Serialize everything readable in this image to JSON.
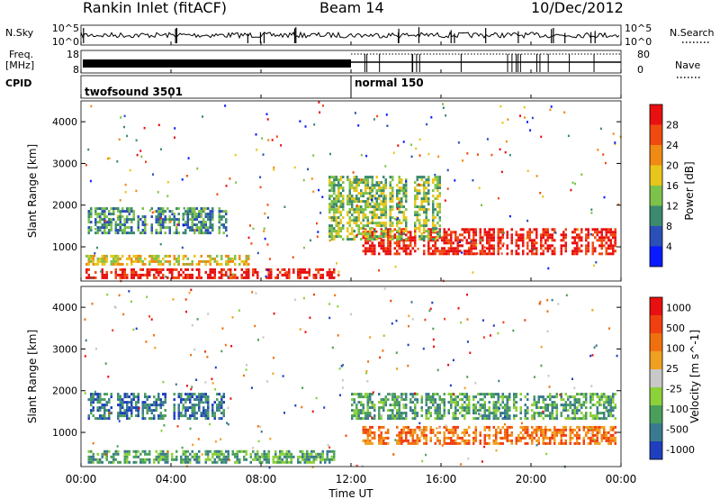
{
  "header": {
    "station": "Rankin Inlet (fitACF)",
    "beam": "Beam 14",
    "date": "10/Dec/2012"
  },
  "left_labels": {
    "nsky": "N.Sky",
    "freq_top": "Freq.",
    "freq_unit": "[MHz]",
    "cpid": "CPID"
  },
  "right_labels": {
    "nsearch": "N.Search",
    "nave": "Nave"
  },
  "cpid_labels": [
    "twofsound 3501",
    "normal 150"
  ],
  "colors": {
    "power_scale": [
      "#0a1aff",
      "#2a4fb8",
      "#3b8a6e",
      "#7dc24a",
      "#e8c51a",
      "#f08a12",
      "#f04a10",
      "#e81010"
    ],
    "velocity_scale": [
      "#1f3fbf",
      "#3a7a8e",
      "#4aa05a",
      "#8cd03a",
      "#c8c8c8",
      "#f0a020",
      "#f07010",
      "#f04010",
      "#e81010"
    ]
  },
  "chart_data": [
    {
      "type": "line",
      "title": "N.Sky / N.Search",
      "y_tick_labels": [
        "10^5",
        "10^0"
      ],
      "y_tick_labels_right": [
        "10^5",
        "10^0"
      ],
      "y_scale": "log"
    },
    {
      "type": "line",
      "title": "Freq. / Nave",
      "y_tick_labels": [
        "18",
        "8"
      ],
      "y_tick_labels_right": [
        "80",
        "0"
      ],
      "ylabel": "[MHz]"
    },
    {
      "type": "heatmap",
      "panel": "power",
      "xlabel": "",
      "ylabel": "Slant Range [km]",
      "ylim": [
        180,
        4500
      ],
      "y_ticks": [
        "1000",
        "2000",
        "3000",
        "4000"
      ],
      "x_ticks": [
        "00:00",
        "04:00",
        "08:00",
        "12:00",
        "16:00",
        "20:00",
        "00:00"
      ],
      "colorbar_label": "Power [dB]",
      "colorbar_ticks": [
        "4",
        "8",
        "12",
        "16",
        "20",
        "24",
        "28"
      ],
      "bands": [
        {
          "t_start": 0.2,
          "t_end": 11.5,
          "r_center": 350,
          "r_width": 250,
          "level": 7
        },
        {
          "t_start": 0.2,
          "t_end": 7.5,
          "r_center": 650,
          "r_width": 200,
          "level": 4
        },
        {
          "t_start": 0.3,
          "t_end": 6.5,
          "r_center": 1600,
          "r_width": 600,
          "level": 2
        },
        {
          "t_start": 12.5,
          "t_end": 23.8,
          "r_center": 1100,
          "r_width": 600,
          "level": 7
        },
        {
          "t_start": 11.0,
          "t_end": 16.0,
          "r_center": 1900,
          "r_width": 1500,
          "level": 3
        }
      ]
    },
    {
      "type": "heatmap",
      "panel": "velocity",
      "xlabel": "Time UT",
      "ylabel": "Slant Range [km]",
      "ylim": [
        180,
        4500
      ],
      "y_ticks": [
        "1000",
        "2000",
        "3000",
        "4000"
      ],
      "x_ticks": [
        "00:00",
        "04:00",
        "08:00",
        "12:00",
        "16:00",
        "20:00",
        "00:00"
      ],
      "colorbar_label": "Velocity [m s^-1]",
      "colorbar_ticks": [
        "1000",
        "500",
        "100",
        "25",
        "-25",
        "-100",
        "-500",
        "-1000"
      ],
      "bands": [
        {
          "t_start": 0.2,
          "t_end": 11.5,
          "r_center": 400,
          "r_width": 300,
          "level": 2
        },
        {
          "t_start": 0.3,
          "t_end": 6.5,
          "r_center": 1600,
          "r_width": 600,
          "level": 1
        },
        {
          "t_start": 12.5,
          "t_end": 23.8,
          "r_center": 900,
          "r_width": 400,
          "level": 6
        },
        {
          "t_start": 12.0,
          "t_end": 23.8,
          "r_center": 1600,
          "r_width": 600,
          "level": 2
        }
      ]
    }
  ]
}
